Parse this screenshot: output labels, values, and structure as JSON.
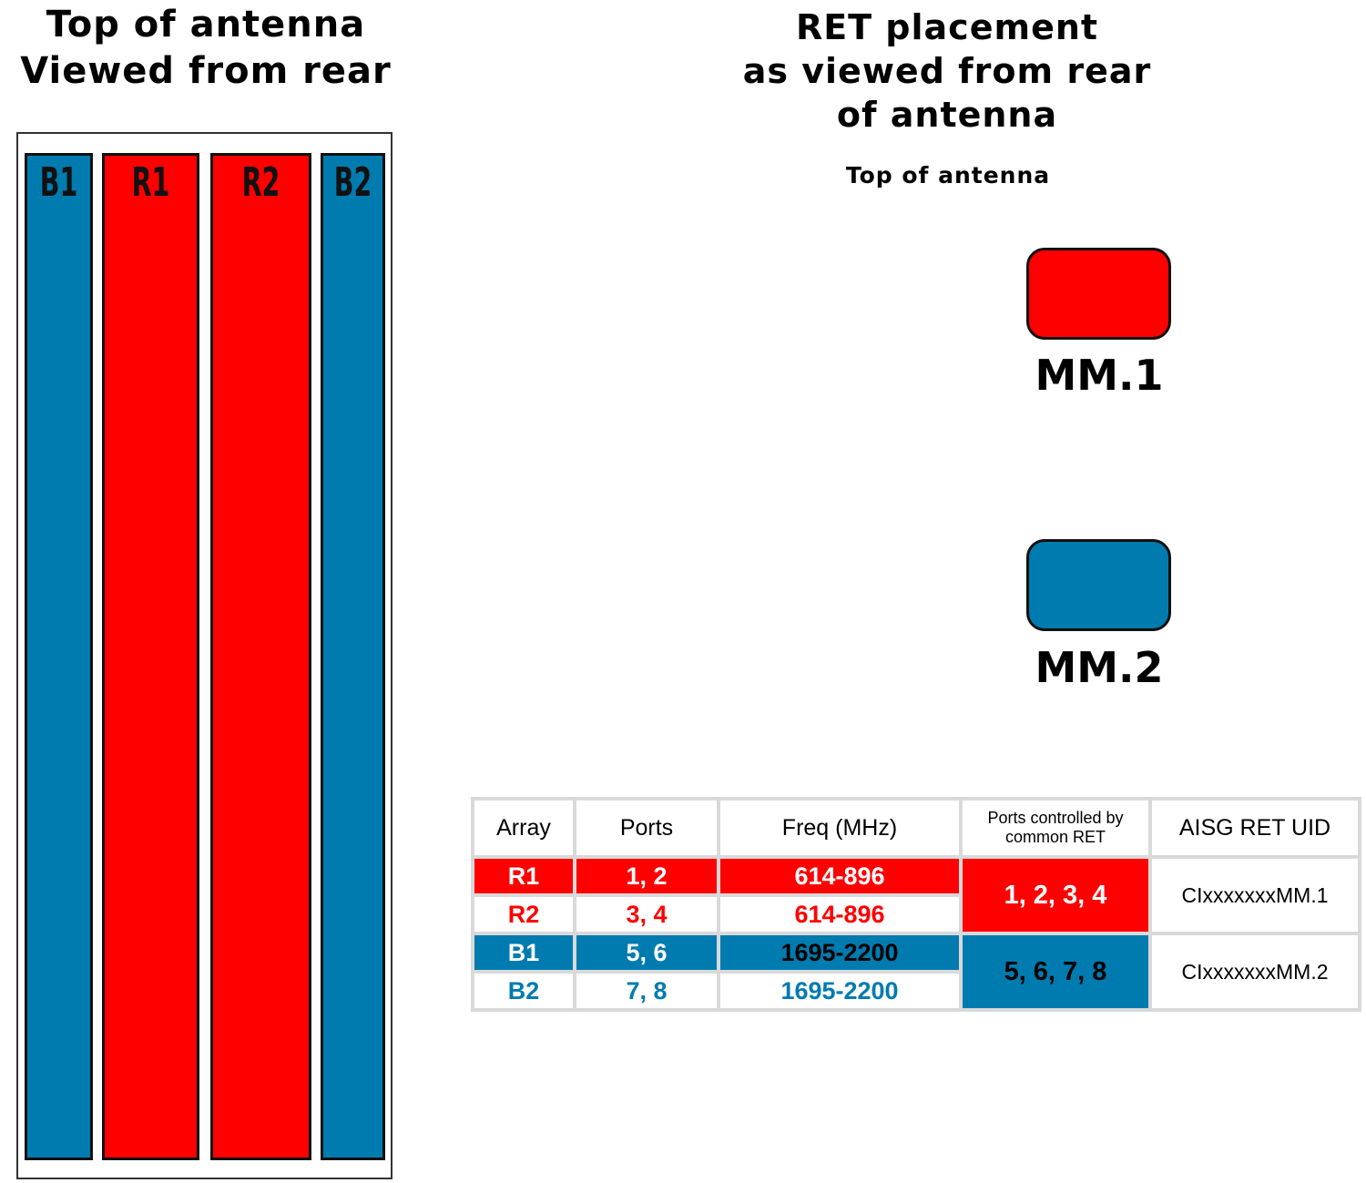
{
  "left_title": [
    "Top of antenna",
    "Viewed from rear"
  ],
  "right_title": [
    "RET placement",
    "as viewed from rear",
    "of antenna"
  ],
  "top_label": "Top of antenna",
  "colors": {
    "red": "#ff0000",
    "blue": "#007bb0"
  },
  "arrays": [
    {
      "label": "B1",
      "color": "#007bb0"
    },
    {
      "label": "R1",
      "color": "#ff0000"
    },
    {
      "label": "R2",
      "color": "#ff0000"
    },
    {
      "label": "B2",
      "color": "#007bb0"
    }
  ],
  "rets": [
    {
      "label": "MM.1",
      "color": "#ff0000"
    },
    {
      "label": "MM.2",
      "color": "#007bb0"
    }
  ],
  "table": {
    "headers": [
      "Array",
      "Ports",
      "Freq (MHz)",
      "Ports controlled by common RET",
      "AISG RET UID"
    ],
    "rows": [
      {
        "array": "R1",
        "ports": "1, 2",
        "freq": "614-896"
      },
      {
        "array": "R2",
        "ports": "3, 4",
        "freq": "614-896"
      },
      {
        "array": "B1",
        "ports": "5, 6",
        "freq": "1695-2200"
      },
      {
        "array": "B2",
        "ports": "7, 8",
        "freq": "1695-2200"
      }
    ],
    "groups": [
      {
        "ports": "1, 2, 3, 4",
        "uid": "CIxxxxxxxMM.1"
      },
      {
        "ports": "5, 6, 7, 8",
        "uid": "CIxxxxxxxMM.2"
      }
    ]
  }
}
